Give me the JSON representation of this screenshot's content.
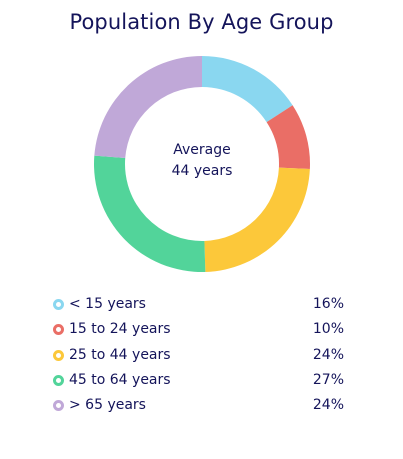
{
  "title": "Population By Age Group",
  "center": {
    "line1": "Average",
    "line2": "44 years"
  },
  "chart_data": {
    "type": "pie",
    "title": "Population By Age Group",
    "center_label": "Average 44 years",
    "legend_position": "bottom",
    "slices": [
      {
        "label": "< 15 years",
        "value": 16,
        "value_label": "16%",
        "color": "#8ad7f0"
      },
      {
        "label": "15 to 24 years",
        "value": 10,
        "value_label": "10%",
        "color": "#ea6e66"
      },
      {
        "label": "25 to 44 years",
        "value": 24,
        "value_label": "24%",
        "color": "#fcc83a"
      },
      {
        "label": "45 to 64 years",
        "value": 27,
        "value_label": "27%",
        "color": "#52d49a"
      },
      {
        "label": "> 65 years",
        "value": 24,
        "value_label": "24%",
        "color": "#c0a8d8"
      }
    ]
  }
}
